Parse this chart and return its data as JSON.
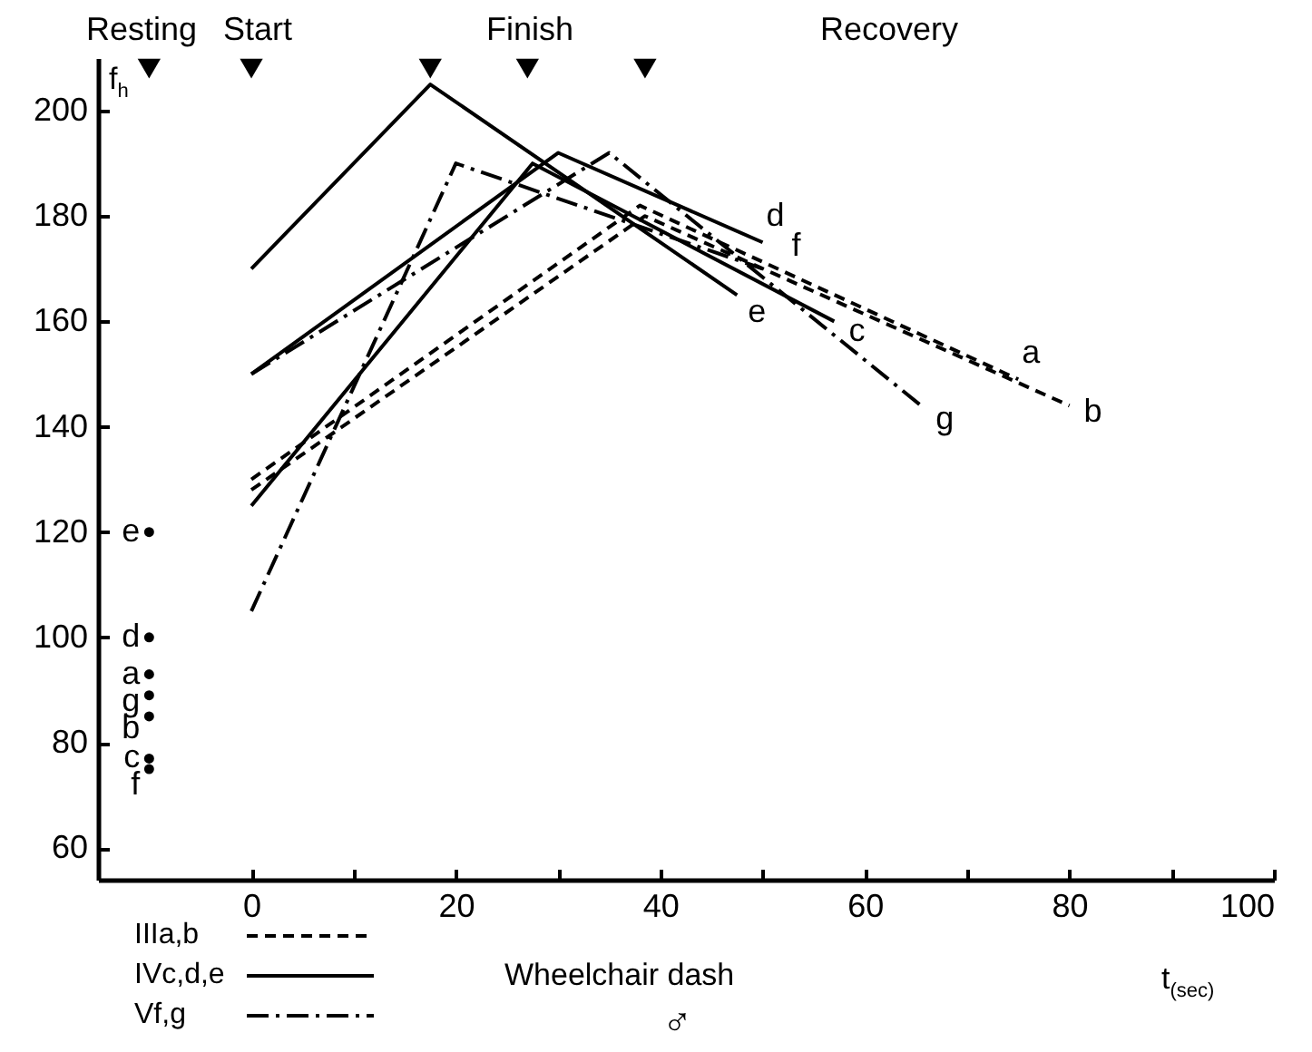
{
  "chart_data": {
    "type": "line",
    "title": "Wheelchair dash",
    "xlabel": "t$_{(sec)}$",
    "ylabel": "f$_{h}$",
    "xlim": [
      -15,
      100
    ],
    "ylim": [
      54,
      210
    ],
    "xticks": [
      0,
      {
        "value": 10,
        "label": null
      },
      20,
      {
        "value": 30,
        "label": null
      },
      40,
      {
        "value": 50,
        "label": null
      },
      60,
      {
        "value": 70,
        "label": null
      },
      80,
      {
        "value": 90,
        "label": null
      },
      100
    ],
    "yticks": [
      60,
      80,
      100,
      120,
      140,
      160,
      180,
      200
    ],
    "grid": false,
    "series": [
      {
        "name": "a",
        "color": "#000000",
        "line_style": "dashed",
        "x": [
          0,
          38,
          75
        ],
        "values": [
          130,
          182,
          149
        ]
      },
      {
        "name": "b",
        "color": "#000000",
        "line_style": "dashed",
        "x": [
          0,
          38.5,
          80
        ],
        "values": [
          128,
          180,
          144
        ]
      },
      {
        "name": "c",
        "color": "#000000",
        "line_style": "solid",
        "x": [
          0,
          27.5,
          57
        ],
        "values": [
          125,
          190,
          160
        ]
      },
      {
        "name": "d",
        "color": "#000000",
        "line_style": "solid",
        "x": [
          0,
          30,
          50
        ],
        "values": [
          150,
          192,
          175
        ]
      },
      {
        "name": "e",
        "color": "#000000",
        "line_style": "solid",
        "x": [
          0,
          17.5,
          47.5
        ],
        "values": [
          170,
          205,
          165
        ]
      },
      {
        "name": "f",
        "color": "#000000",
        "line_style": "dashdot",
        "x": [
          0,
          20,
          50
        ],
        "values": [
          105,
          190,
          170
        ]
      },
      {
        "name": "g",
        "color": "#000000",
        "line_style": "dashdot",
        "x": [
          0,
          35,
          65.5
        ],
        "values": [
          150,
          192,
          144
        ]
      },
      {
        "type": "scatter",
        "color": "#000000",
        "marker": "circle",
        "x": [
          -10,
          -10,
          -10,
          -10,
          -10,
          -10,
          -10
        ],
        "values": [
          93,
          85,
          77,
          100,
          120,
          75,
          89
        ],
        "value_labels": [
          "a",
          "b",
          "c",
          "d",
          "e",
          "f",
          "g"
        ]
      },
      {
        "type": "scatter",
        "color": "#000000",
        "marker": "triangle",
        "x": [
          -10,
          0,
          17.5,
          27,
          38.5
        ],
        "values": [
          208,
          208,
          208,
          208,
          208
        ]
      }
    ],
    "annotations": [
      "Resting",
      "Start",
      "Finish",
      "Recovery",
      "IIIa,b",
      "IVc,d,e",
      "Vf,g",
      "♂"
    ]
  }
}
